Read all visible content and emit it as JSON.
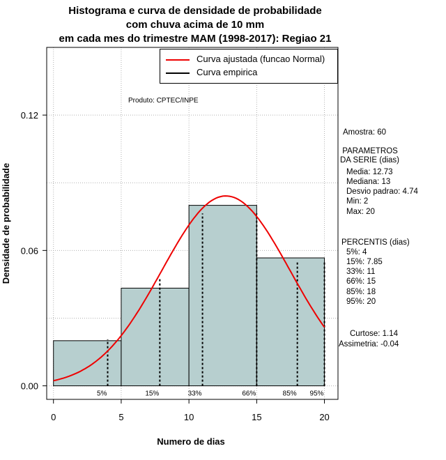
{
  "titles": [
    "Histograma e curva de densidade de probabilidade",
    "com chuva acima de 10 mm",
    "em cada mes do trimestre MAM (1998-2017): Regiao 21"
  ],
  "product": "Produto: CPTEC/INPE",
  "legend": {
    "fit": "Curva ajustada (funcao Normal)",
    "empirical": "Curva empirica"
  },
  "stats": {
    "sample": "Amostra: 60",
    "params_header": " PARAMETROS\nDA SERIE (dias)",
    "params": [
      "Media: 12.73",
      "Mediana: 13",
      "Desvio padrao: 4.74",
      "Min: 2",
      "Max: 20"
    ],
    "percentiles_header": "PERCENTIS (dias)",
    "percentiles": [
      "5%: 4",
      "15%: 7.85",
      "33%: 11",
      "66%: 15",
      "85%: 18",
      "95%: 20"
    ],
    "kurtosis": "Curtose: 1.14",
    "skewness": "Assimetria: -0.04"
  },
  "colors": {
    "bars": "#b7cfcf",
    "fit_curve": "#ee0000",
    "grid": "#b0b0b0"
  },
  "chart_data": {
    "type": "bar",
    "xlabel": "Numero de dias",
    "ylabel": "Densidade de probabilidade",
    "xlim": [
      -0.5,
      21
    ],
    "ylim": [
      -0.006,
      0.15
    ],
    "x_ticks": [
      0,
      5,
      10,
      15,
      20
    ],
    "y_ticks": [
      0.0,
      0.06,
      0.12
    ],
    "y_tick_labels": [
      "0.00",
      "0.06",
      "0.12"
    ],
    "histogram": [
      {
        "from": 0,
        "to": 5,
        "density": 0.02
      },
      {
        "from": 5,
        "to": 10,
        "density": 0.0433
      },
      {
        "from": 10,
        "to": 15,
        "density": 0.08
      },
      {
        "from": 15,
        "to": 20,
        "density": 0.0567
      }
    ],
    "normal_fit": {
      "mean": 12.73,
      "sd": 4.74,
      "x_range": [
        0,
        20
      ]
    },
    "percentile_lines": [
      {
        "label": "5%",
        "x": 4
      },
      {
        "label": "15%",
        "x": 7.85
      },
      {
        "label": "33%",
        "x": 11
      },
      {
        "label": "66%",
        "x": 15
      },
      {
        "label": "85%",
        "x": 18
      },
      {
        "label": "95%",
        "x": 20
      }
    ],
    "grid": true,
    "legend_position": "top-right"
  }
}
